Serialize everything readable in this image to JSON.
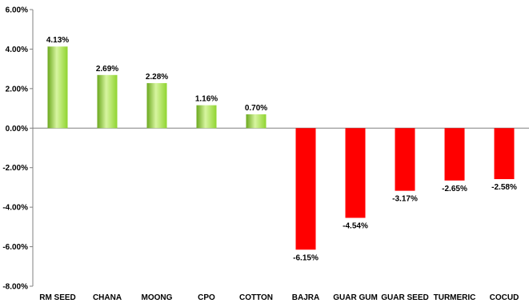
{
  "chart_data": {
    "type": "bar",
    "title": "",
    "xlabel": "",
    "ylabel": "",
    "ylim": [
      -8,
      6
    ],
    "y_tick_step": 2,
    "y_ticks": [
      "6.00%",
      "4.00%",
      "2.00%",
      "0.00%",
      "-2.00%",
      "-4.00%",
      "-6.00%",
      "-8.00%"
    ],
    "categories": [
      "RM SEED",
      "CHANA",
      "MOONG",
      "CPO",
      "COTTON",
      "BAJRA",
      "GUAR GUM",
      "GUAR SEED",
      "TURMERIC",
      "COCUD"
    ],
    "values": [
      4.13,
      2.69,
      2.28,
      1.16,
      0.7,
      -6.15,
      -4.54,
      -3.17,
      -2.65,
      -2.58
    ],
    "data_labels": [
      "4.13%",
      "2.69%",
      "2.28%",
      "1.16%",
      "0.70%",
      "-6.15%",
      "-4.54%",
      "-3.17%",
      "-2.65%",
      "-2.58%"
    ],
    "grid": false,
    "legend": "none",
    "colors": {
      "positive": "#8fd42f",
      "positive_light": "#d7f5a0",
      "positive_dark": "#6aa81c",
      "negative": "#ff0000",
      "axis": "#808080"
    }
  }
}
